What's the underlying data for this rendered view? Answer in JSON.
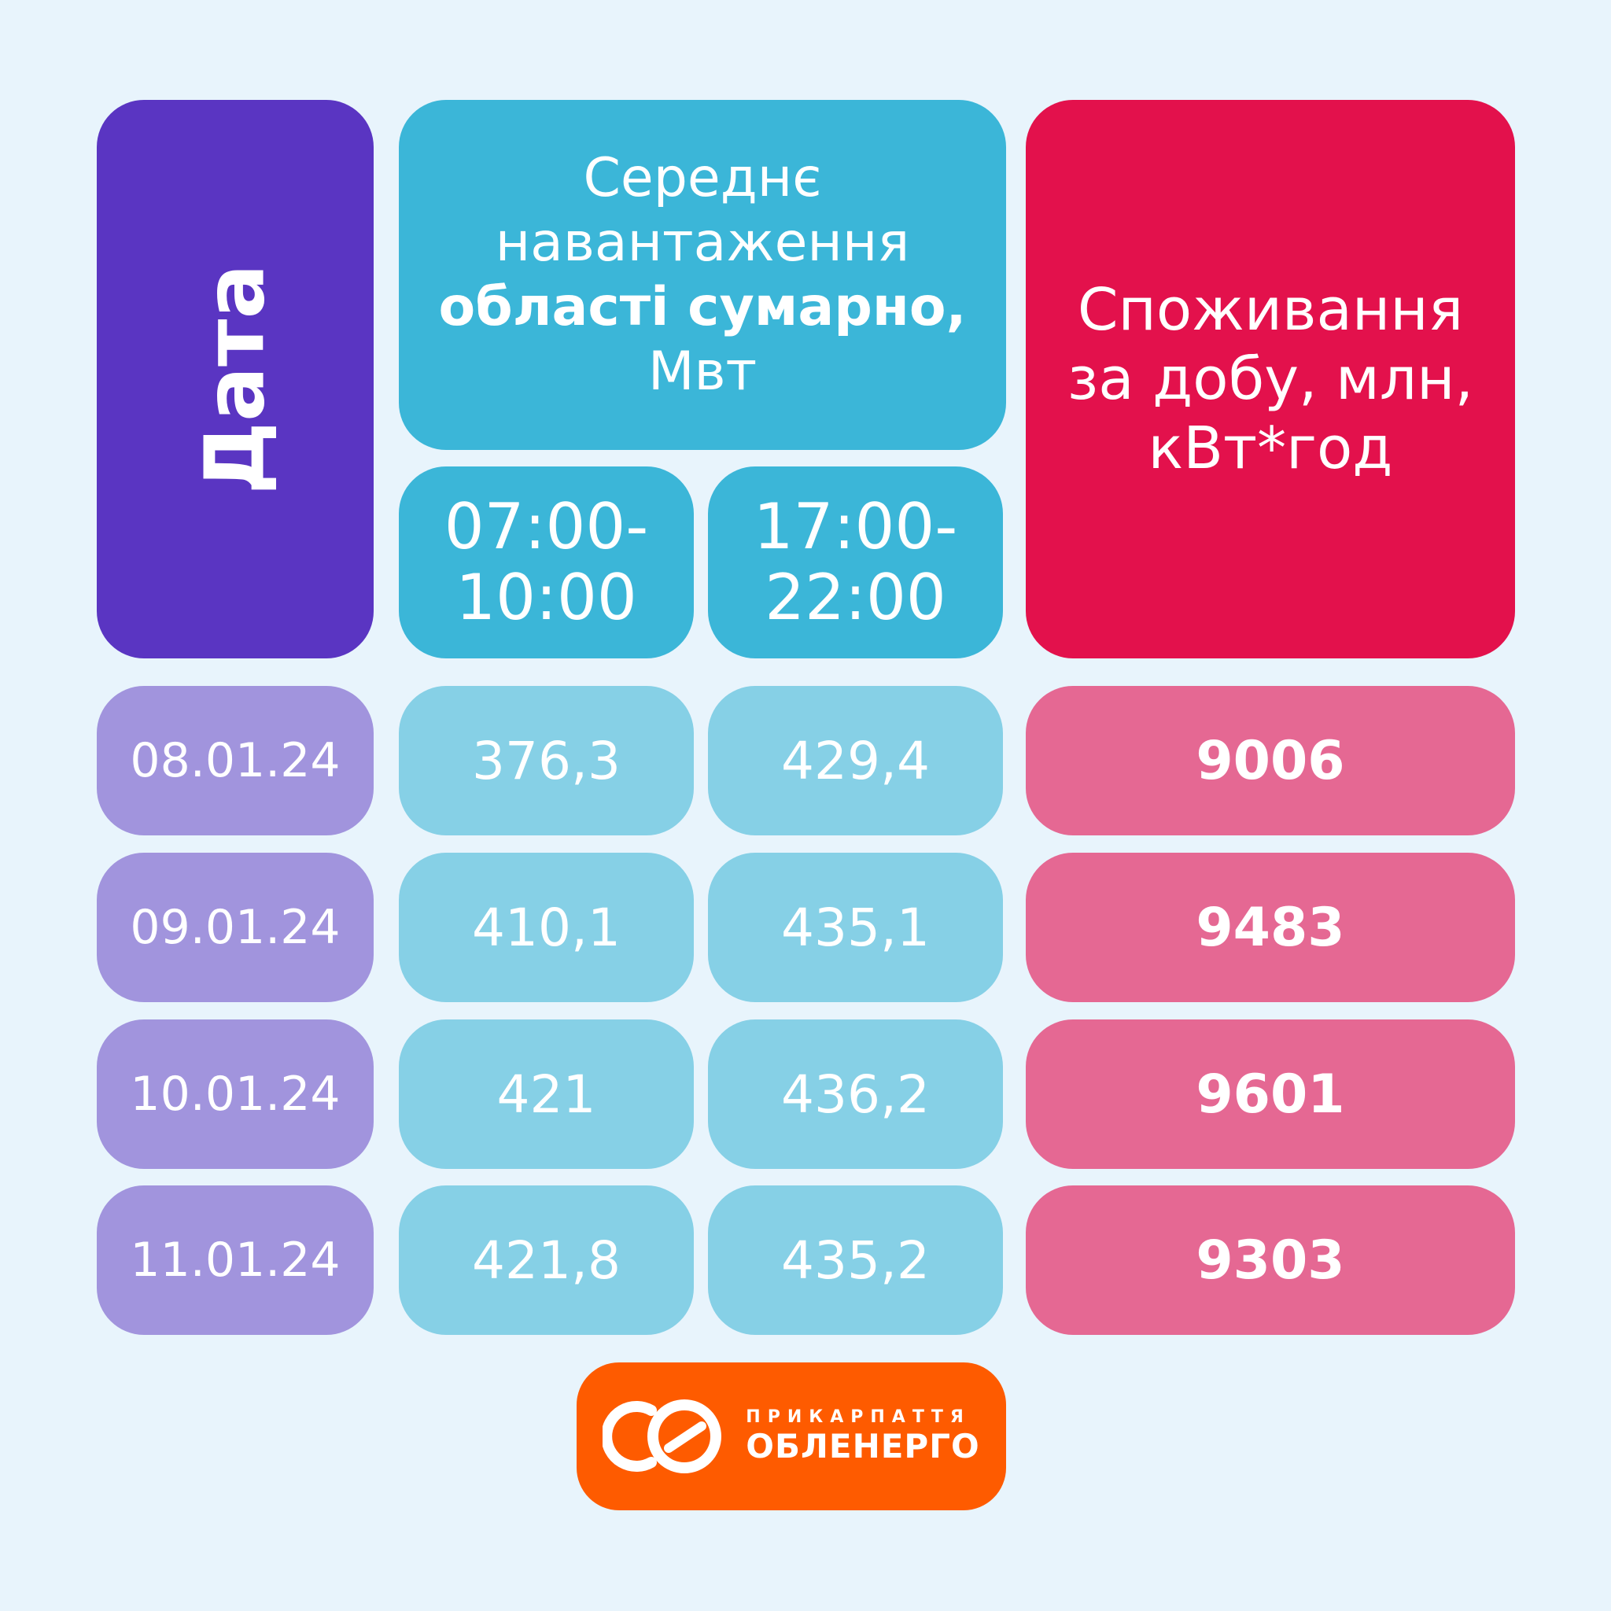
{
  "header": {
    "date": "Дата",
    "load_lines": [
      "Середнє",
      "навантаження",
      "області сумарно,",
      "Мвт"
    ],
    "morning_lines": [
      "07:00-",
      "10:00"
    ],
    "evening_lines": [
      "17:00-",
      "22:00"
    ],
    "consumption_lines": [
      "Споживання",
      "за добу, млн,",
      "кВт*год"
    ]
  },
  "rows": [
    {
      "date": "08.01.24",
      "morning": "376,3",
      "evening": "429,4",
      "consumption": "9006"
    },
    {
      "date": "09.01.24",
      "morning": "410,1",
      "evening": "435,1",
      "consumption": "9483"
    },
    {
      "date": "10.01.24",
      "morning": "421",
      "evening": "436,2",
      "consumption": "9601"
    },
    {
      "date": "11.01.24",
      "morning": "421,8",
      "evening": "435,2",
      "consumption": "9303"
    }
  ],
  "logo": {
    "top": "ПРИКАРПАТТЯ",
    "bottom": "ОБЛЕНЕРГО",
    "icon": "oe-logo-icon"
  },
  "colors": {
    "date_header": "#5a35c2",
    "load_header": "#3bb6d8",
    "consumption_header": "#e3114c",
    "date_cells": "#a194dd",
    "load_cells": "#86d0e6",
    "consumption_cells": "#e56893",
    "logo": "#fe5b00"
  }
}
